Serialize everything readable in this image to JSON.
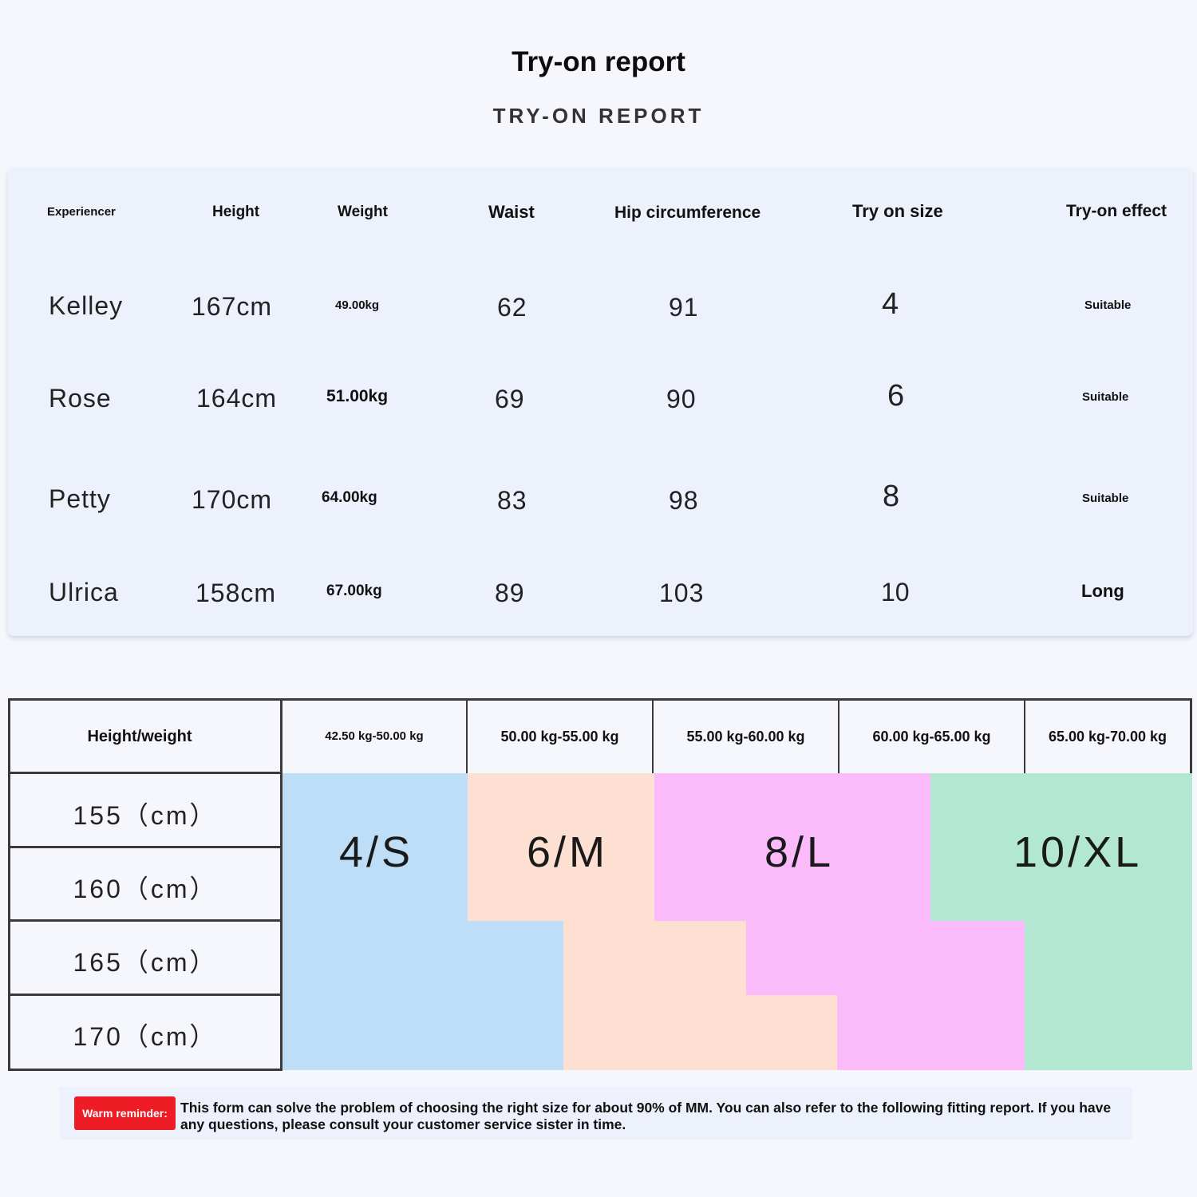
{
  "header": {
    "title": "Try-on report",
    "subtitle": "TRY-ON REPORT"
  },
  "report": {
    "columns": [
      "Experiencer",
      "Height",
      "Weight",
      "Waist",
      "Hip circumference",
      "Try on size",
      "Try-on effect"
    ],
    "rows": [
      {
        "name": "Kelley",
        "height": "167cm",
        "weight": "49.00kg",
        "waist": "62",
        "hip": "91",
        "size": "4",
        "effect": "Suitable"
      },
      {
        "name": "Rose",
        "height": "164cm",
        "weight": "51.00kg",
        "waist": "69",
        "hip": "90",
        "size": "6",
        "effect": "Suitable"
      },
      {
        "name": "Petty",
        "height": "170cm",
        "weight": "64.00kg",
        "waist": "83",
        "hip": "98",
        "size": "8",
        "effect": "Suitable"
      },
      {
        "name": "Ulrica",
        "height": "158cm",
        "weight": "67.00kg",
        "waist": "89",
        "hip": "103",
        "size": "10",
        "effect": "Long"
      }
    ]
  },
  "size_chart": {
    "corner_label": "Height/weight",
    "weight_ranges": [
      "42.50 kg-50.00 kg",
      "50.00 kg-55.00 kg",
      "55.00 kg-60.00 kg",
      "60.00 kg-65.00 kg",
      "65.00 kg-70.00 kg"
    ],
    "heights": [
      "155（cm）",
      "160（cm）",
      "165（cm）",
      "170（cm）"
    ],
    "sizes": [
      {
        "label": "4/S",
        "color": "#bddef6"
      },
      {
        "label": "6/M",
        "color": "#fde0d2"
      },
      {
        "label": "8/L",
        "color": "#fbbafa"
      },
      {
        "label": "10/XL",
        "color": "#b2e8d2"
      }
    ]
  },
  "reminder": {
    "badge": "Warm reminder:",
    "text": "This form can solve the problem of choosing the right size for about 90% of MM. You can also refer to the following fitting report. If you have any questions, please consult your customer service sister in time."
  }
}
